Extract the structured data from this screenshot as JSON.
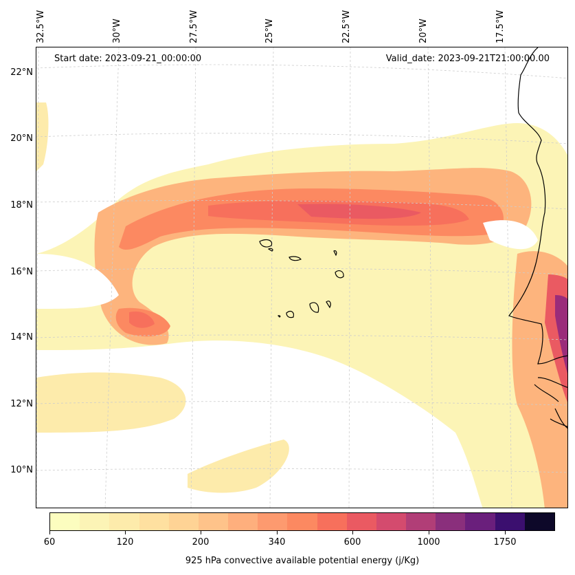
{
  "map": {
    "start_date": "Start date: 2023-09-21_00:00:00",
    "valid_date": "Valid_date: 2023-09-21T21:00:00.00",
    "lon_labels": [
      "32.5°W",
      "30°W",
      "27.5°W",
      "25°W",
      "22.5°W",
      "20°W",
      "17.5°W"
    ],
    "lat_labels": [
      "22°N",
      "20°N",
      "18°N",
      "16°N",
      "14°N",
      "12°N",
      "10°N"
    ],
    "gridlines": true,
    "coastline_color": "#000000",
    "field_colors": {
      "low": "#fcf4b6",
      "mid": "#fdb47d",
      "high": "#f7805f",
      "peak": "#9a2c7a"
    }
  },
  "colorbar": {
    "title": "925 hPa convective available potential energy (j/Kg)",
    "tick_labels": [
      "60",
      "120",
      "200",
      "340",
      "600",
      "1000",
      "1750"
    ],
    "colors": [
      "#fcfdbf",
      "#fcf4b6",
      "#fdebab",
      "#fee0a0",
      "#fed395",
      "#fec38a",
      "#feaf7d",
      "#fd9a6f",
      "#fc8961",
      "#f7705c",
      "#ea5a62",
      "#d44b6e",
      "#b13e77",
      "#8a2f7c",
      "#6a1f7c",
      "#3b0f6f",
      "#0d0829"
    ]
  }
}
